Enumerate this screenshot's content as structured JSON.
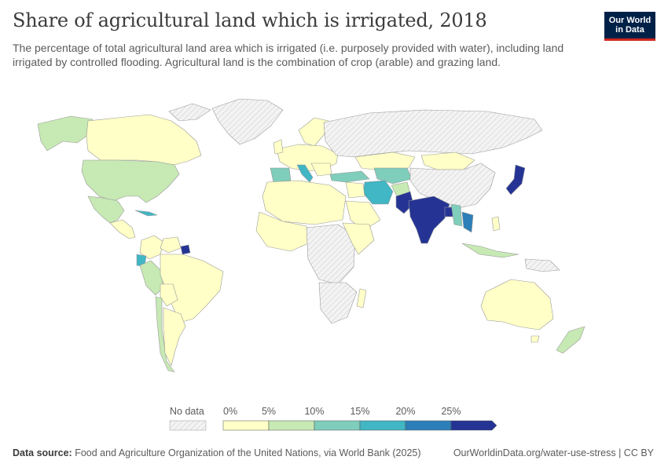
{
  "header": {
    "title": "Share of agricultural land which is irrigated, 2018",
    "subtitle": "The percentage of total agricultural land area which is irrigated (i.e. purposely provided with water), including land irrigated by controlled flooding. Agricultural land is the combination of crop (arable) and grazing land."
  },
  "logo": {
    "line1": "Our World",
    "line2": "in Data"
  },
  "legend": {
    "no_data_label": "No data",
    "bins": [
      "0%",
      "5%",
      "10%",
      "15%",
      "20%",
      "25%"
    ],
    "colors": [
      "#ffffc7",
      "#c7e9b4",
      "#7fcdbb",
      "#41b6c4",
      "#2c7fb8",
      "#253494"
    ],
    "no_data_color": "#eeeeee"
  },
  "footer": {
    "source_label": "Data source:",
    "source_text": "Food and Agriculture Organization of the United Nations, via World Bank (2025)",
    "url": "OurWorldinData.org/water-use-stress | CC BY"
  },
  "map_data": {
    "variable": "Share of agricultural land which is irrigated",
    "year": 2018,
    "unit": "%",
    "regions": [
      {
        "name": "Canada",
        "bin": "0-5%"
      },
      {
        "name": "Alaska",
        "bin": "5-10%"
      },
      {
        "name": "Greenland",
        "bin": "No data"
      },
      {
        "name": "United States",
        "bin": "5-10%"
      },
      {
        "name": "Mexico",
        "bin": "5-10%"
      },
      {
        "name": "Cuba",
        "bin": "15-20%"
      },
      {
        "name": "Colombia",
        "bin": "0-5%"
      },
      {
        "name": "Venezuela",
        "bin": "0-5%"
      },
      {
        "name": "Suriname",
        "bin": "25%+"
      },
      {
        "name": "Ecuador",
        "bin": "15-20%"
      },
      {
        "name": "Peru",
        "bin": "5-10%"
      },
      {
        "name": "Brazil",
        "bin": "0-5%"
      },
      {
        "name": "Bolivia",
        "bin": "0-5%"
      },
      {
        "name": "Chile",
        "bin": "5-10%"
      },
      {
        "name": "Argentina",
        "bin": "0-5%"
      },
      {
        "name": "Russia",
        "bin": "No data"
      },
      {
        "name": "Europe",
        "bin": "0-5%"
      },
      {
        "name": "Spain",
        "bin": "10-15%"
      },
      {
        "name": "Italy",
        "bin": "15-20%"
      },
      {
        "name": "Turkey",
        "bin": "10-15%"
      },
      {
        "name": "Iran",
        "bin": "15-20%"
      },
      {
        "name": "Afghanistan",
        "bin": "5-10%"
      },
      {
        "name": "Pakistan",
        "bin": "25%+"
      },
      {
        "name": "India",
        "bin": "25%+"
      },
      {
        "name": "Bangladesh",
        "bin": "25%+"
      },
      {
        "name": "Myanmar",
        "bin": "10-15%"
      },
      {
        "name": "Thailand",
        "bin": "20-25%"
      },
      {
        "name": "Kazakhstan",
        "bin": "0-5%"
      },
      {
        "name": "Mongolia",
        "bin": "0-5%"
      },
      {
        "name": "China",
        "bin": "No data"
      },
      {
        "name": "Japan",
        "bin": "25%+"
      },
      {
        "name": "Indonesia",
        "bin": "5-10%"
      },
      {
        "name": "Australia",
        "bin": "0-5%"
      },
      {
        "name": "New Zealand",
        "bin": "5-10%"
      },
      {
        "name": "Africa",
        "bin": "0-5%"
      },
      {
        "name": "Saudi Arabia",
        "bin": "0-5%"
      }
    ]
  }
}
